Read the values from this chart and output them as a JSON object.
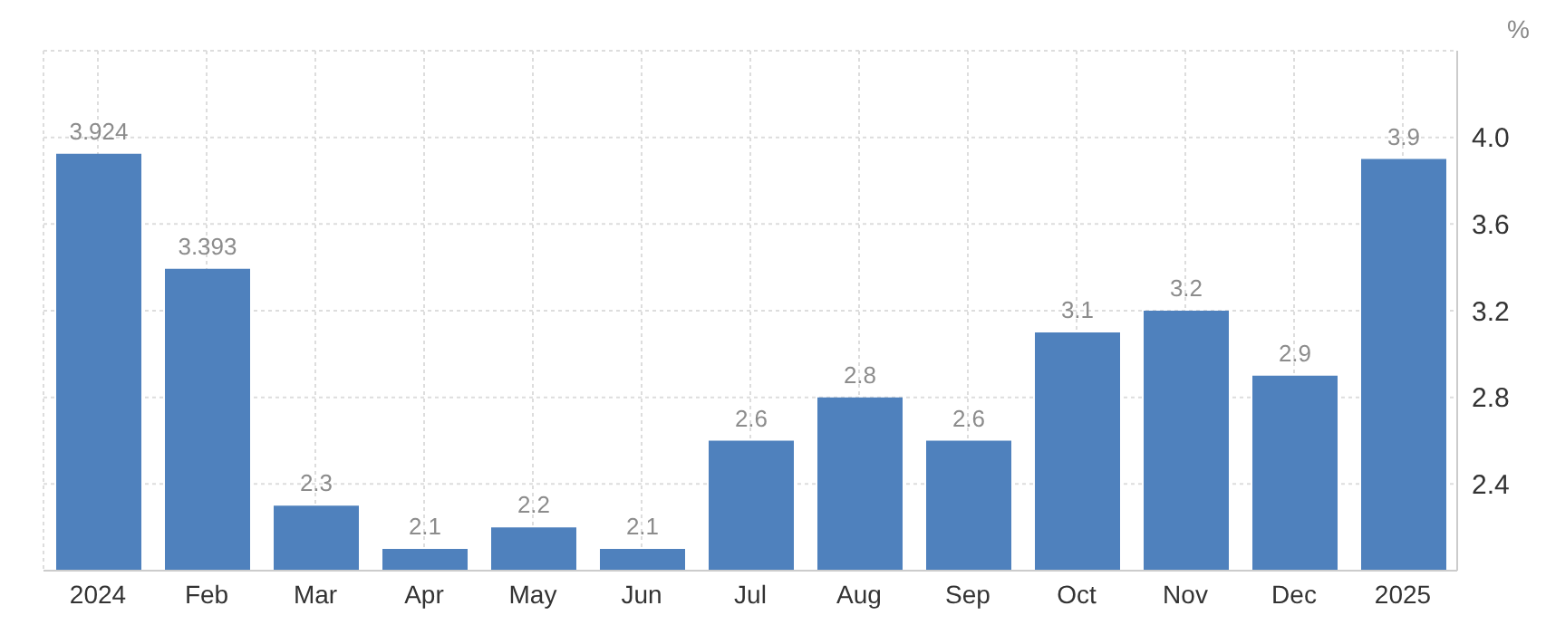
{
  "chart_data": {
    "type": "bar",
    "ylabel": "%",
    "categories": [
      "2024",
      "Feb",
      "Mar",
      "Apr",
      "May",
      "Jun",
      "Jul",
      "Aug",
      "Sep",
      "Oct",
      "Nov",
      "Dec",
      "2025"
    ],
    "values": [
      3.924,
      3.393,
      2.3,
      2.1,
      2.2,
      2.1,
      2.6,
      2.8,
      2.6,
      3.1,
      3.2,
      2.9,
      3.9
    ],
    "color": "#4f81bd",
    "ylim": [
      2.0,
      4.4
    ],
    "yticks": [
      {
        "value": 2.0,
        "label": null
      },
      2.4,
      2.8,
      3.2,
      3.6,
      {
        "value": 4.0,
        "label": "4.0"
      },
      {
        "value": 4.4,
        "label": null
      }
    ],
    "grid": true,
    "data_labels": true
  }
}
